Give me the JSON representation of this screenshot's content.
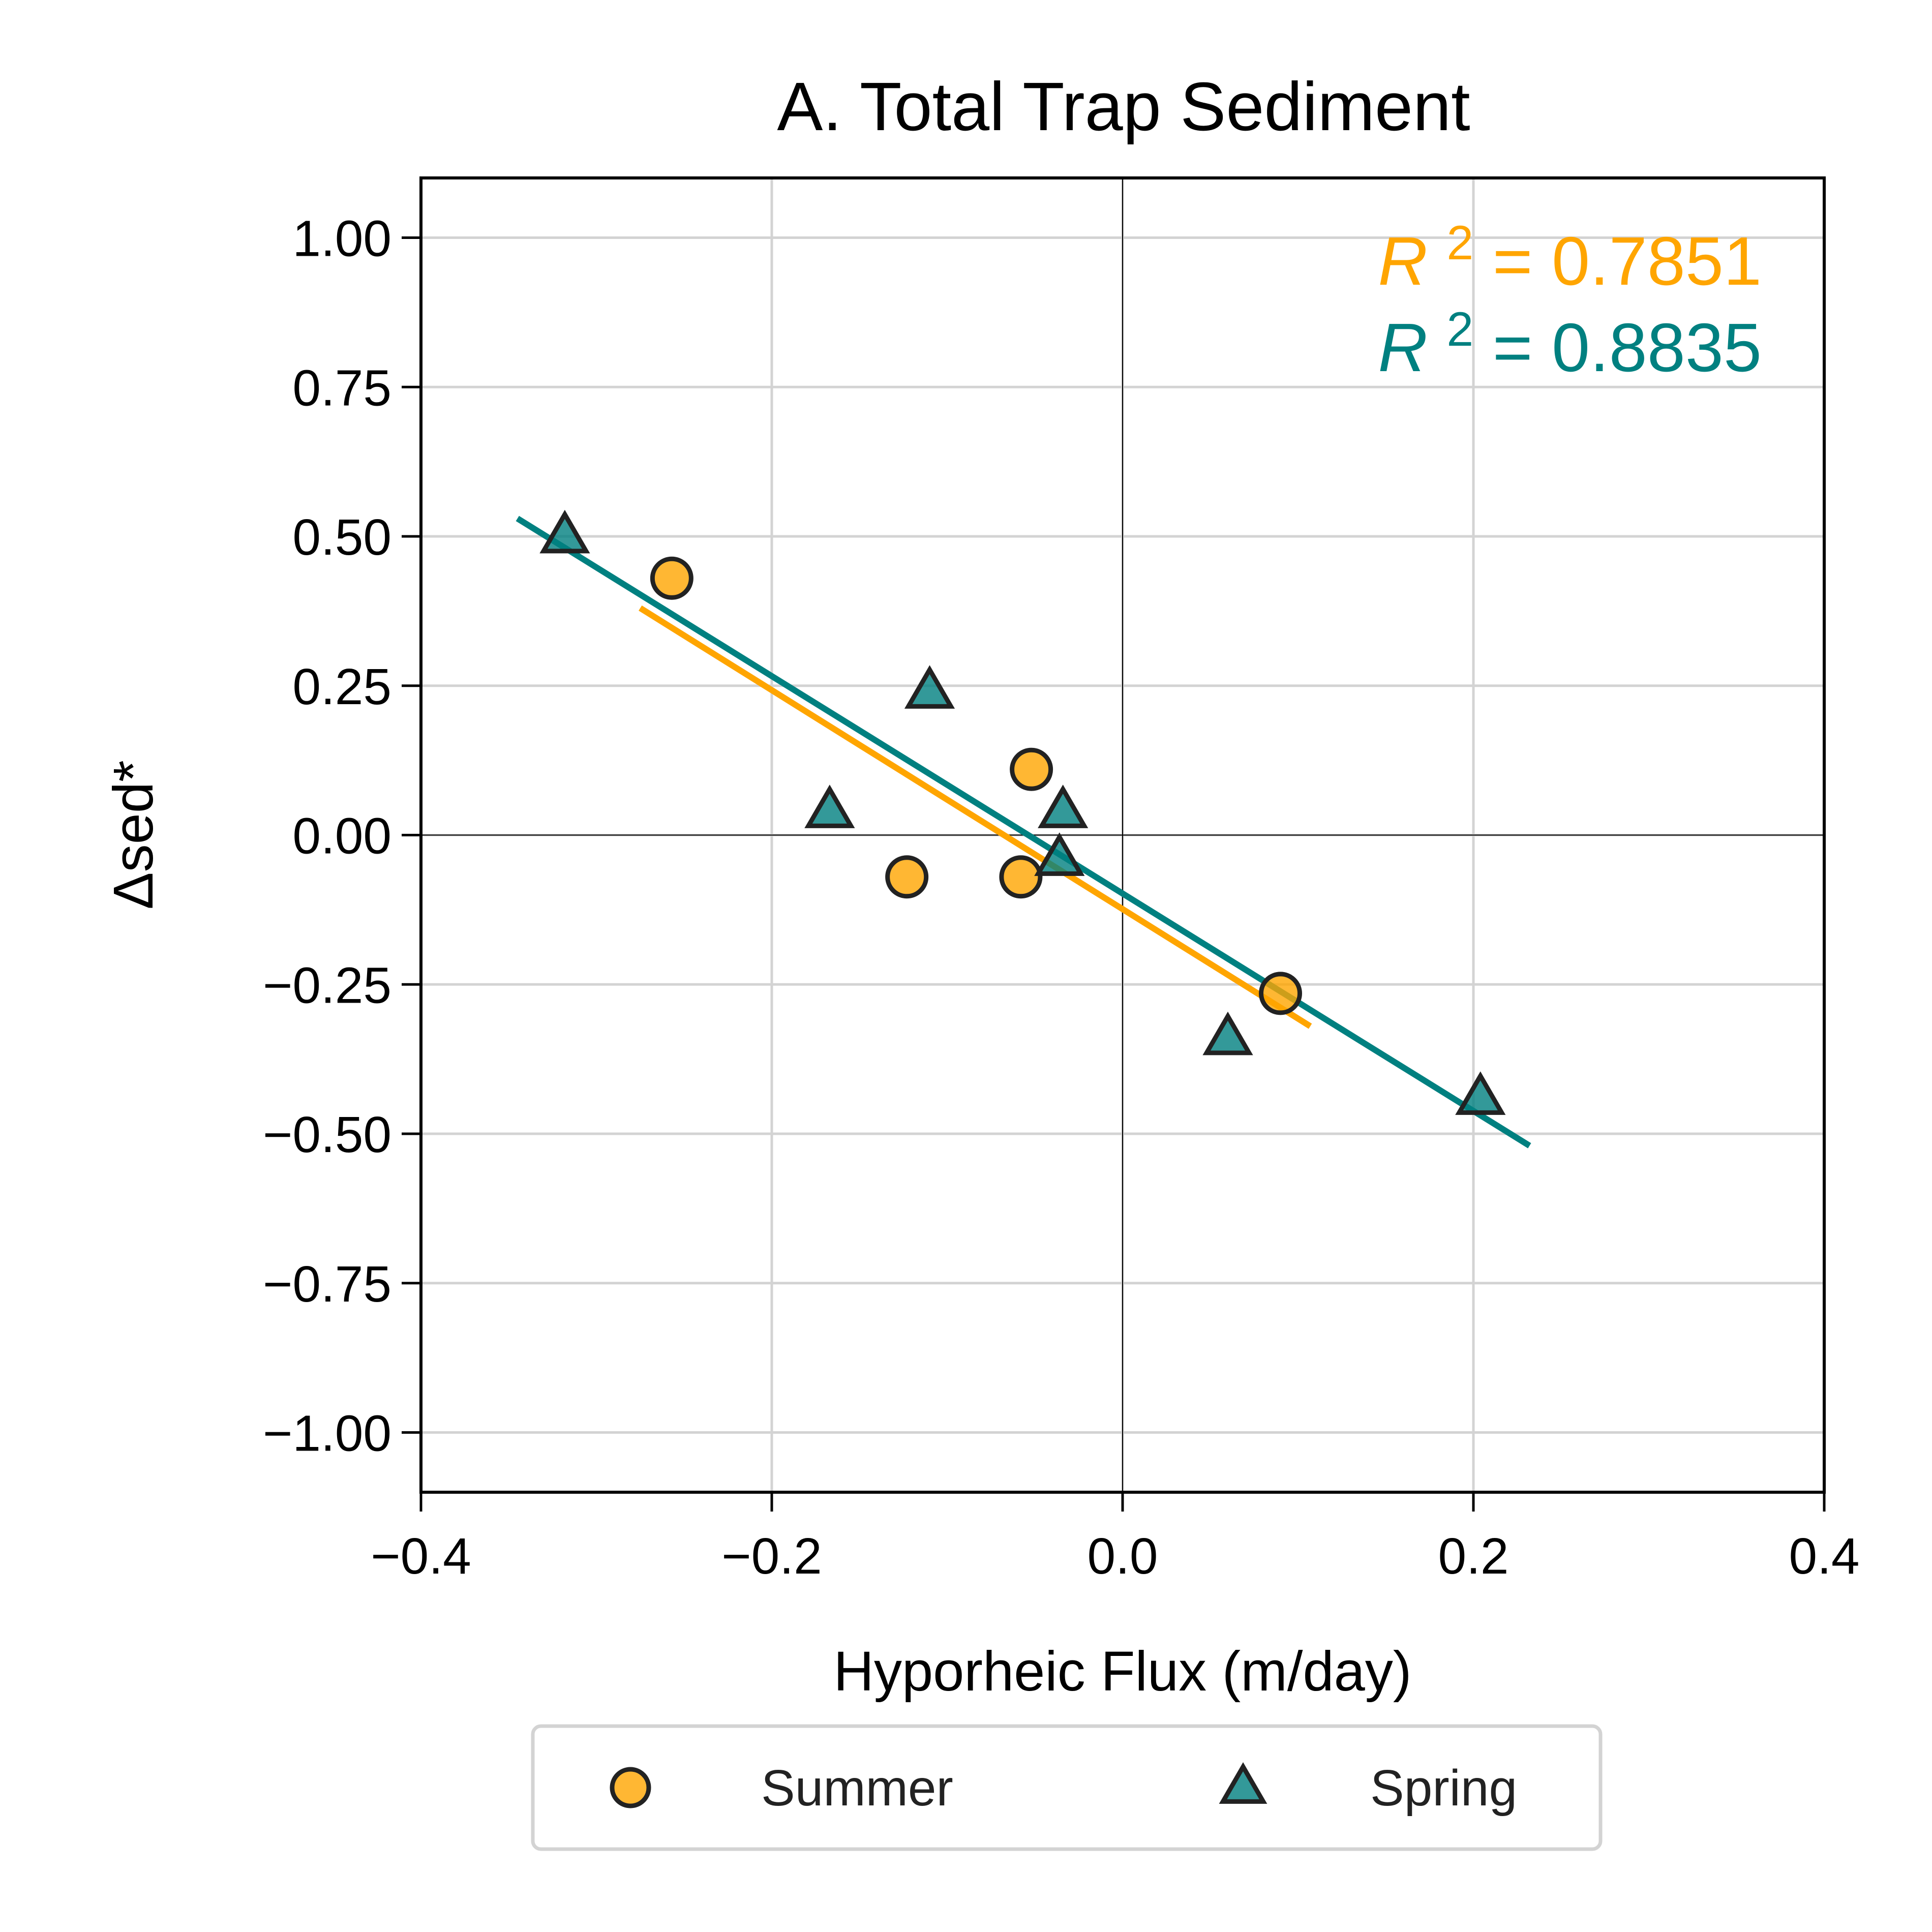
{
  "chart_data": {
    "type": "scatter",
    "title": "A. Total Trap Sediment",
    "xlabel": "Hyporheic Flux (m/day)",
    "ylabel": "Δsed*",
    "xlim": [
      -0.4,
      0.4
    ],
    "ylim": [
      -1.1,
      1.1
    ],
    "xticks": [
      -0.4,
      -0.2,
      0.0,
      0.2,
      0.4
    ],
    "xtick_labels": [
      "−0.4",
      "−0.2",
      "0.0",
      "0.2",
      "0.4"
    ],
    "yticks": [
      1.0,
      0.75,
      0.5,
      0.25,
      0.0,
      -0.25,
      -0.5,
      -0.75,
      -1.0
    ],
    "ytick_labels": [
      "1.00",
      "0.75",
      "0.50",
      "0.25",
      "0.00",
      "−0.25",
      "−0.50",
      "−0.75",
      "−1.00"
    ],
    "grid": true,
    "zero_lines": true,
    "legend_position": "bottom-center-outside",
    "series": [
      {
        "name": "Summer",
        "marker": "circle",
        "color": "#FFA500",
        "edge_color": "#222222",
        "points": [
          {
            "x": -0.257,
            "y": 0.43
          },
          {
            "x": -0.052,
            "y": 0.11
          },
          {
            "x": -0.123,
            "y": -0.07
          },
          {
            "x": -0.058,
            "y": -0.07
          },
          {
            "x": 0.09,
            "y": -0.265
          }
        ],
        "fit": {
          "x_start": -0.275,
          "x_end": 0.107,
          "y_start": 0.38,
          "y_end": -0.32
        },
        "r2_label": "R",
        "r2_sup": "2",
        "r2_value": " = 0.7851"
      },
      {
        "name": "Spring",
        "marker": "triangle",
        "color": "#008080",
        "edge_color": "#222222",
        "points": [
          {
            "x": -0.318,
            "y": 0.5
          },
          {
            "x": -0.11,
            "y": 0.24
          },
          {
            "x": -0.167,
            "y": 0.04
          },
          {
            "x": -0.034,
            "y": 0.04
          },
          {
            "x": -0.036,
            "y": -0.04
          },
          {
            "x": 0.06,
            "y": -0.34
          },
          {
            "x": 0.204,
            "y": -0.44
          }
        ],
        "fit": {
          "x_start": -0.345,
          "x_end": 0.232,
          "y_start": 0.53,
          "y_end": -0.52
        },
        "r2_label": "R",
        "r2_sup": "2",
        "r2_value": " = 0.8835"
      }
    ]
  }
}
